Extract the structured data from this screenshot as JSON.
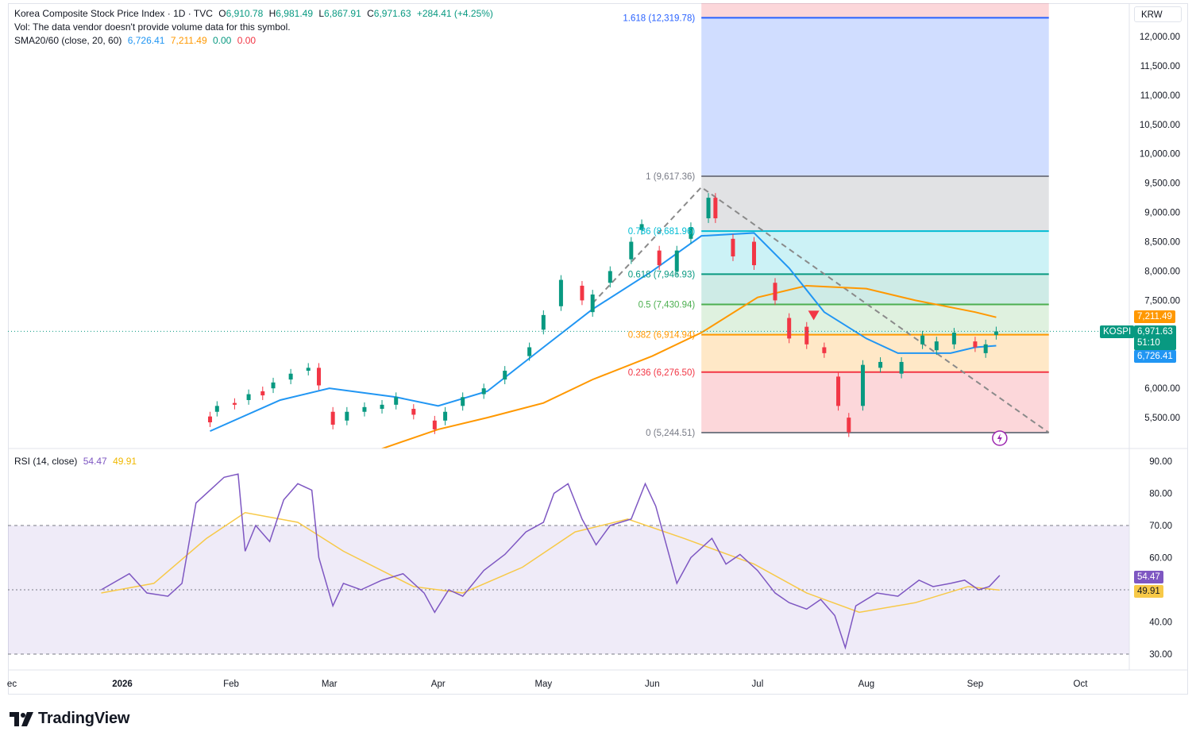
{
  "header": {
    "symbol_title": "Korea Composite Stock Price Index · 1D · TVC",
    "open_label": "O",
    "open": "6,910.78",
    "high_label": "H",
    "high": "6,981.49",
    "low_label": "L",
    "low": "6,867.91",
    "close_label": "C",
    "close": "6,971.63",
    "change": "+284.41 (+4.25%)",
    "vol_note": "Vol: The data vendor doesn't provide volume data for this symbol.",
    "sma_label": "SMA20/60 (close, 20, 60)",
    "sma20": "6,726.41",
    "sma60": "7,211.49",
    "sma_v3": "0.00",
    "sma_v4": "0.00"
  },
  "rsi_legend": {
    "label": "RSI (14, close)",
    "rsi": "54.47",
    "rsi_ma": "49.91"
  },
  "currency": "KRW",
  "tags": {
    "symbol": "KOSPI",
    "price": "6,971.63",
    "countdown": "51:10",
    "sma60": "7,211.49",
    "sma20": "6,726.41",
    "rsi": "54.47",
    "rsi_ma": "49.91"
  },
  "price_axis": [
    "12,000.00",
    "11,500.00",
    "11,000.00",
    "10,500.00",
    "10,000.00",
    "9,500.00",
    "9,000.00",
    "8,500.00",
    "8,000.00",
    "7,500.00",
    "6,000.00",
    "5,500.00"
  ],
  "rsi_axis": [
    "90.00",
    "80.00",
    "70.00",
    "60.00",
    "40.00",
    "30.00"
  ],
  "time_axis": [
    "ec",
    "2026",
    "Feb",
    "Mar",
    "Apr",
    "May",
    "Jun",
    "Jul",
    "Aug",
    "Sep",
    "Oct"
  ],
  "fib_levels": [
    {
      "label": "1.618 (12,319.78)",
      "value": 12319.78,
      "color": "#2962ff"
    },
    {
      "label": "1 (9,617.36)",
      "value": 9617.36,
      "color": "#787b86"
    },
    {
      "label": "0.786 (8,681.96)",
      "value": 8681.96,
      "color": "#00bcd4"
    },
    {
      "label": "0.618 (7,946.93)",
      "value": 7946.93,
      "color": "#089981"
    },
    {
      "label": "0.5 (7,430.94)",
      "value": 7430.94,
      "color": "#4caf50"
    },
    {
      "label": "0.382 (6,914.94)",
      "value": 6914.94,
      "color": "#ff9800"
    },
    {
      "label": "0.236 (6,276.50)",
      "value": 6276.5,
      "color": "#f23645"
    },
    {
      "label": "0 (5,244.51)",
      "value": 5244.51,
      "color": "#787b86"
    }
  ],
  "colors": {
    "up": "#089981",
    "down": "#f23645",
    "sma20": "#2196f3",
    "sma60": "#ff9800",
    "rsi": "#7e57c2",
    "rsi_ma": "#f7c948",
    "trend": "#8a8a8a"
  },
  "icons": [
    "tradingview-logo-icon",
    "flash-icon",
    "sell-arrow-icon"
  ],
  "logo_text": "TradingView",
  "chart_data": {
    "type": "candlestick",
    "title": "Korea Composite Stock Price Index · 1D · TVC",
    "x_range": [
      "2025-12-26",
      "2026-10-07"
    ],
    "y_range": [
      5000,
      12450
    ],
    "candles_sampled": [
      [
        "2026-01-26",
        5520,
        5420
      ],
      [
        "2026-01-28",
        5600,
        5700
      ],
      [
        "2026-02-02",
        5750,
        5720
      ],
      [
        "2026-02-06",
        5800,
        5900
      ],
      [
        "2026-02-10",
        5950,
        5880
      ],
      [
        "2026-02-13",
        6000,
        6100
      ],
      [
        "2026-02-18",
        6150,
        6250
      ],
      [
        "2026-02-23",
        6300,
        6350
      ],
      [
        "2026-02-26",
        6350,
        6050
      ],
      [
        "2026-03-02",
        5600,
        5380
      ],
      [
        "2026-03-06",
        5450,
        5600
      ],
      [
        "2026-03-11",
        5600,
        5680
      ],
      [
        "2026-03-16",
        5650,
        5720
      ],
      [
        "2026-03-20",
        5720,
        5850
      ],
      [
        "2026-03-25",
        5650,
        5550
      ],
      [
        "2026-03-31",
        5450,
        5300
      ],
      [
        "2026-04-03",
        5450,
        5600
      ],
      [
        "2026-04-08",
        5700,
        5850
      ],
      [
        "2026-04-14",
        5900,
        6000
      ],
      [
        "2026-04-20",
        6150,
        6300
      ],
      [
        "2026-04-27",
        6550,
        6700
      ],
      [
        "2026-05-01",
        7000,
        7250
      ],
      [
        "2026-05-06",
        7400,
        7850
      ],
      [
        "2026-05-12",
        7750,
        7500
      ],
      [
        "2026-05-15",
        7300,
        7600
      ],
      [
        "2026-05-20",
        7800,
        8000
      ],
      [
        "2026-05-26",
        8200,
        8500
      ],
      [
        "2026-05-29",
        8700,
        8800
      ],
      [
        "2026-06-03",
        8350,
        8100
      ],
      [
        "2026-06-08",
        8000,
        8350
      ],
      [
        "2026-06-12",
        8550,
        8750
      ],
      [
        "2026-06-17",
        8900,
        9250
      ],
      [
        "2026-06-19",
        9250,
        8900
      ],
      [
        "2026-06-24",
        8550,
        8250
      ],
      [
        "2026-06-30",
        8500,
        8100
      ],
      [
        "2026-07-06",
        7800,
        7500
      ],
      [
        "2026-07-10",
        7200,
        6850
      ],
      [
        "2026-07-15",
        7050,
        6750
      ],
      [
        "2026-07-20",
        6700,
        6600
      ],
      [
        "2026-07-24",
        6200,
        5700
      ],
      [
        "2026-07-27",
        5500,
        5250
      ],
      [
        "2026-07-31",
        5700,
        6400
      ],
      [
        "2026-08-05",
        6350,
        6450
      ],
      [
        "2026-08-11",
        6250,
        6450
      ],
      [
        "2026-08-17",
        6750,
        6900
      ],
      [
        "2026-08-21",
        6650,
        6800
      ],
      [
        "2026-08-26",
        6750,
        6950
      ],
      [
        "2026-09-01",
        6800,
        6700
      ],
      [
        "2026-09-04",
        6600,
        6750
      ],
      [
        "2026-09-07",
        6910.78,
        6971.63
      ]
    ],
    "sma20_last": 6726.41,
    "sma60_last": 7211.49,
    "rsi_last": 54.47,
    "rsi_ma_last": 49.91
  }
}
